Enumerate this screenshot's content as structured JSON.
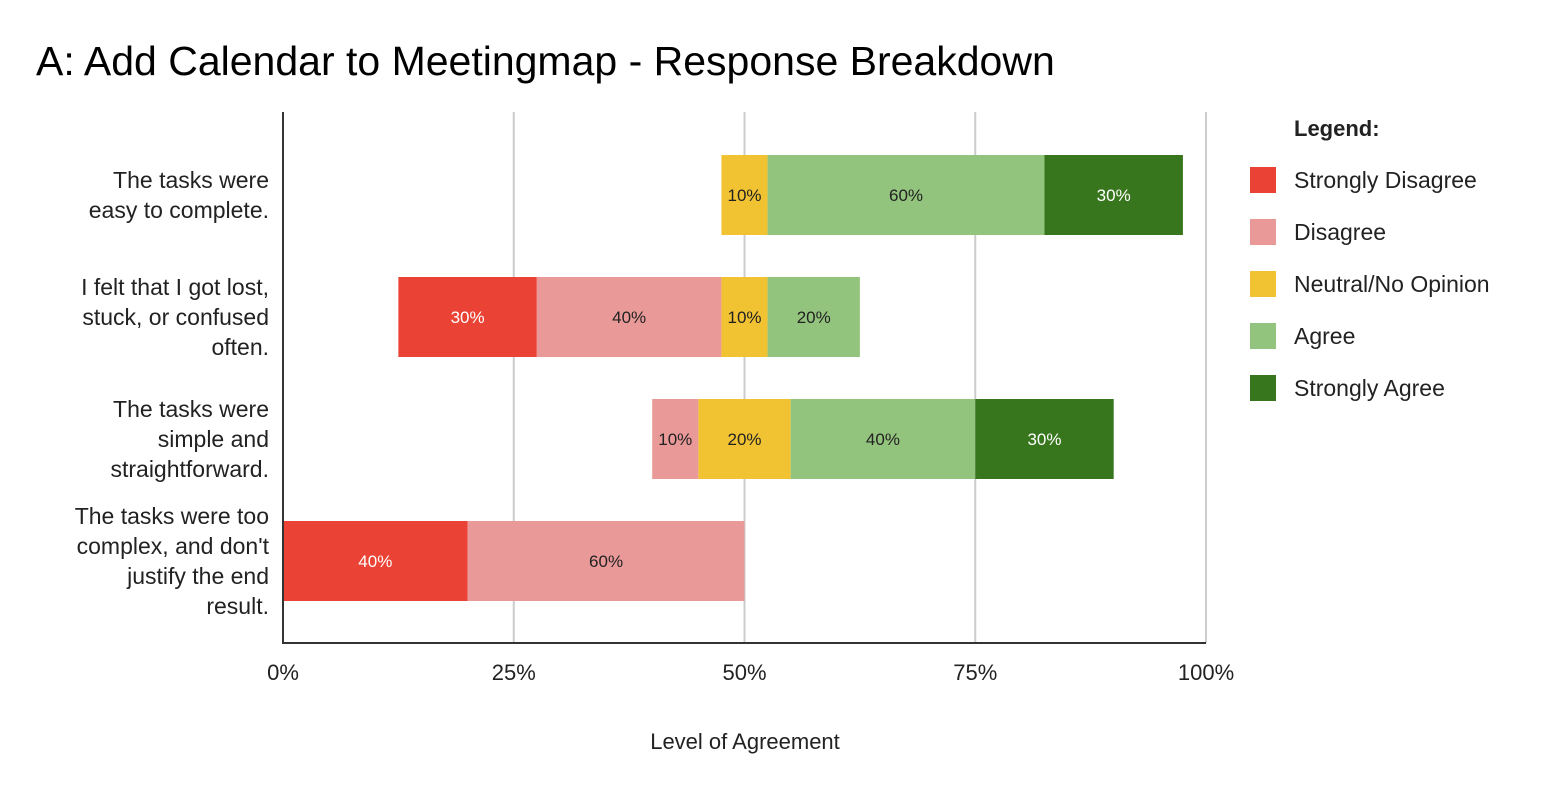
{
  "chart_data": {
    "type": "bar",
    "orientation": "horizontal",
    "stacked": true,
    "title": "A: Add Calendar to Meetingmap - Response Breakdown",
    "xlabel": "Level of Agreement",
    "ylabel": "",
    "xlim": [
      0,
      1
    ],
    "xticks": [
      {
        "value": 0,
        "label": "0%"
      },
      {
        "value": 0.25,
        "label": "25%"
      },
      {
        "value": 0.5,
        "label": "50%"
      },
      {
        "value": 0.75,
        "label": "75%"
      },
      {
        "value": 1,
        "label": "100%"
      }
    ],
    "grid": true,
    "legend": {
      "title": "Legend:",
      "position": "right",
      "entries": [
        {
          "name": "Strongly Disagree",
          "color": "#ea4335"
        },
        {
          "name": "Disagree",
          "color": "#ea9999"
        },
        {
          "name": "Neutral/No Opinion",
          "color": "#f1c232"
        },
        {
          "name": "Agree",
          "color": "#93c47d"
        },
        {
          "name": "Strongly Agree",
          "color": "#38761d"
        }
      ]
    },
    "categories": [
      {
        "label": [
          "The tasks were",
          "easy to complete."
        ],
        "segments": [
          {
            "series": "Neutral/No Opinion",
            "start": 0.475,
            "end": 0.525,
            "label": "10%"
          },
          {
            "series": "Agree",
            "start": 0.525,
            "end": 0.825,
            "label": "60%"
          },
          {
            "series": "Strongly Agree",
            "start": 0.825,
            "end": 0.975,
            "label": "30%"
          }
        ]
      },
      {
        "label": [
          "I felt that I got lost,",
          "stuck, or confused",
          "often."
        ],
        "segments": [
          {
            "series": "Strongly Disagree",
            "start": 0.125,
            "end": 0.275,
            "label": "30%"
          },
          {
            "series": "Disagree",
            "start": 0.275,
            "end": 0.475,
            "label": "40%"
          },
          {
            "series": "Neutral/No Opinion",
            "start": 0.475,
            "end": 0.525,
            "label": "10%"
          },
          {
            "series": "Agree",
            "start": 0.525,
            "end": 0.625,
            "label": "20%"
          }
        ]
      },
      {
        "label": [
          "The tasks were",
          "simple and",
          "straightforward."
        ],
        "segments": [
          {
            "series": "Disagree",
            "start": 0.4,
            "end": 0.45,
            "label": "10%"
          },
          {
            "series": "Neutral/No Opinion",
            "start": 0.45,
            "end": 0.55,
            "label": "20%"
          },
          {
            "series": "Agree",
            "start": 0.55,
            "end": 0.75,
            "label": "40%"
          },
          {
            "series": "Strongly Agree",
            "start": 0.75,
            "end": 0.9,
            "label": "30%"
          }
        ]
      },
      {
        "label": [
          "The tasks were too",
          "complex, and don't",
          "justify the end",
          "result."
        ],
        "segments": [
          {
            "series": "Strongly Disagree",
            "start": 0,
            "end": 0.2,
            "label": "40%"
          },
          {
            "series": "Disagree",
            "start": 0.2,
            "end": 0.5,
            "label": "60%"
          }
        ]
      }
    ]
  }
}
